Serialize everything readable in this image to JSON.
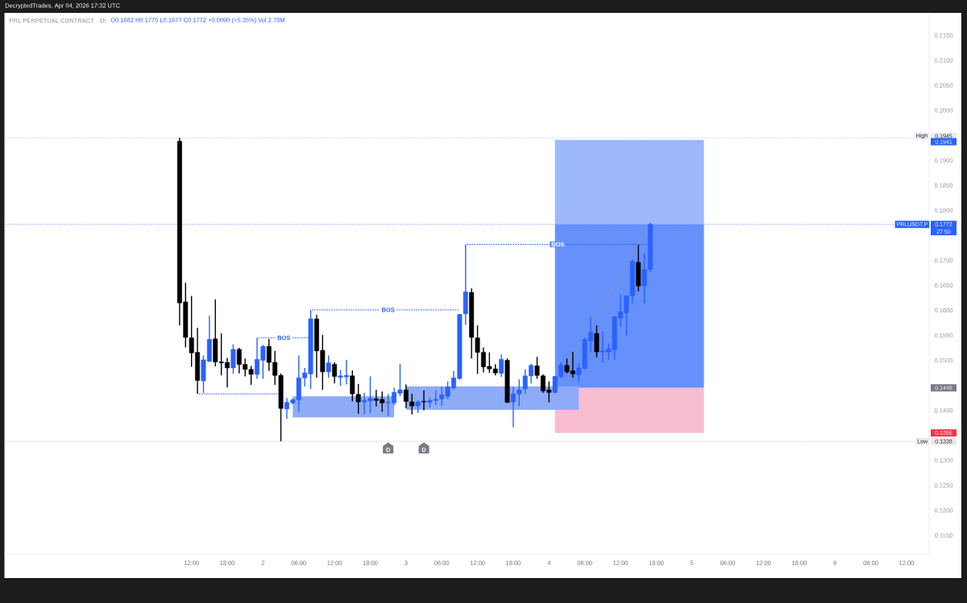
{
  "chart_data": {
    "type": "candlestick",
    "title": "PRL PERPETUAL CONTRACT · 1h",
    "subtitle": "O0.1682 H0.1775 L0.1677 C0.1772 +0.0090 (+5.35%) Vol 2.78M",
    "annotations": [
      "DecryptedTrades, Apr 04, 2026 17:32 UTC",
      "27:50",
      {
        "text": "BOS",
        "x": "2026-04-02T03:30",
        "y": 0.1545
      },
      {
        "text": "BOS",
        "x": "2026-04-02T21:00",
        "y": 0.1601
      },
      {
        "text": "BOS",
        "x": "2026-04-04T01:30",
        "y": 0.1732
      },
      {
        "text": "D",
        "x": "2026-04-02T21:00",
        "y": 0.1338
      },
      {
        "text": "D",
        "x": "2026-04-03T03:00",
        "y": 0.1338
      }
    ],
    "x": [
      "2026-04-01T10:00",
      "2026-04-01T11:00",
      "2026-04-01T12:00",
      "2026-04-01T13:00",
      "2026-04-01T14:00",
      "2026-04-01T15:00",
      "2026-04-01T16:00",
      "2026-04-01T17:00",
      "2026-04-01T18:00",
      "2026-04-01T19:00",
      "2026-04-01T20:00",
      "2026-04-01T21:00",
      "2026-04-01T22:00",
      "2026-04-01T23:00",
      "2026-04-02T00:00",
      "2026-04-02T01:00",
      "2026-04-02T02:00",
      "2026-04-02T03:00",
      "2026-04-02T04:00",
      "2026-04-02T05:00",
      "2026-04-02T06:00",
      "2026-04-02T07:00",
      "2026-04-02T08:00",
      "2026-04-02T09:00",
      "2026-04-02T10:00",
      "2026-04-02T11:00",
      "2026-04-02T12:00",
      "2026-04-02T13:00",
      "2026-04-02T14:00",
      "2026-04-02T15:00",
      "2026-04-02T16:00",
      "2026-04-02T17:00",
      "2026-04-02T18:00",
      "2026-04-02T19:00",
      "2026-04-02T20:00",
      "2026-04-02T21:00",
      "2026-04-02T22:00",
      "2026-04-02T23:00",
      "2026-04-03T00:00",
      "2026-04-03T01:00",
      "2026-04-03T02:00",
      "2026-04-03T03:00",
      "2026-04-03T04:00",
      "2026-04-03T05:00",
      "2026-04-03T06:00",
      "2026-04-03T07:00",
      "2026-04-03T08:00",
      "2026-04-03T09:00",
      "2026-04-03T10:00",
      "2026-04-03T11:00",
      "2026-04-03T12:00",
      "2026-04-03T13:00",
      "2026-04-03T14:00",
      "2026-04-03T15:00",
      "2026-04-03T16:00",
      "2026-04-03T17:00",
      "2026-04-03T18:00",
      "2026-04-03T19:00",
      "2026-04-03T20:00",
      "2026-04-03T21:00",
      "2026-04-03T22:00",
      "2026-04-03T23:00",
      "2026-04-04T00:00",
      "2026-04-04T01:00",
      "2026-04-04T02:00",
      "2026-04-04T03:00",
      "2026-04-04T04:00",
      "2026-04-04T05:00",
      "2026-04-04T06:00",
      "2026-04-04T07:00",
      "2026-04-04T08:00",
      "2026-04-04T09:00",
      "2026-04-04T10:00",
      "2026-04-04T11:00",
      "2026-04-04T12:00",
      "2026-04-04T13:00",
      "2026-04-04T14:00",
      "2026-04-04T15:00",
      "2026-04-04T16:00",
      "2026-04-04T17:00"
    ],
    "ohlc": [
      [
        0.1938,
        0.1945,
        0.157,
        0.1615
      ],
      [
        0.1617,
        0.1655,
        0.1526,
        0.1546
      ],
      [
        0.1545,
        0.1629,
        0.1487,
        0.1515
      ],
      [
        0.1516,
        0.1565,
        0.1433,
        0.146
      ],
      [
        0.1459,
        0.151,
        0.1435,
        0.1501
      ],
      [
        0.1498,
        0.1589,
        0.1497,
        0.1542
      ],
      [
        0.1543,
        0.1622,
        0.1488,
        0.1497
      ],
      [
        0.1497,
        0.1554,
        0.147,
        0.1495
      ],
      [
        0.1496,
        0.1505,
        0.1446,
        0.1485
      ],
      [
        0.1485,
        0.1532,
        0.1473,
        0.1522
      ],
      [
        0.1522,
        0.1525,
        0.1474,
        0.1492
      ],
      [
        0.1492,
        0.1504,
        0.1468,
        0.1482
      ],
      [
        0.1482,
        0.1489,
        0.1451,
        0.1472
      ],
      [
        0.1472,
        0.1545,
        0.1463,
        0.1502
      ],
      [
        0.15,
        0.1531,
        0.1463,
        0.1528
      ],
      [
        0.1528,
        0.1543,
        0.1479,
        0.1496
      ],
      [
        0.1496,
        0.1519,
        0.1451,
        0.147
      ],
      [
        0.147,
        0.1474,
        0.1338,
        0.1404
      ],
      [
        0.1403,
        0.1425,
        0.1383,
        0.1416
      ],
      [
        0.1415,
        0.1424,
        0.1412,
        0.1421
      ],
      [
        0.1421,
        0.151,
        0.1397,
        0.1465
      ],
      [
        0.1465,
        0.1485,
        0.1448,
        0.1475
      ],
      [
        0.1473,
        0.1601,
        0.1443,
        0.1583
      ],
      [
        0.1583,
        0.1591,
        0.1465,
        0.1519
      ],
      [
        0.152,
        0.1551,
        0.1441,
        0.1477
      ],
      [
        0.1477,
        0.151,
        0.1465,
        0.1495
      ],
      [
        0.1492,
        0.1496,
        0.1454,
        0.1468
      ],
      [
        0.1466,
        0.1481,
        0.1449,
        0.1469
      ],
      [
        0.1467,
        0.1501,
        0.1452,
        0.147
      ],
      [
        0.1469,
        0.148,
        0.1418,
        0.1433
      ],
      [
        0.1432,
        0.1453,
        0.1393,
        0.1417
      ],
      [
        0.1417,
        0.1435,
        0.1392,
        0.142
      ],
      [
        0.1419,
        0.1468,
        0.1395,
        0.1424
      ],
      [
        0.1423,
        0.1441,
        0.1408,
        0.142
      ],
      [
        0.1422,
        0.1438,
        0.1397,
        0.1415
      ],
      [
        0.1415,
        0.1433,
        0.1389,
        0.1416
      ],
      [
        0.1415,
        0.1445,
        0.141,
        0.1436
      ],
      [
        0.1434,
        0.1493,
        0.1428,
        0.1441
      ],
      [
        0.1441,
        0.1452,
        0.1405,
        0.1418
      ],
      [
        0.1417,
        0.1433,
        0.1392,
        0.1409
      ],
      [
        0.1409,
        0.142,
        0.1395,
        0.1417
      ],
      [
        0.1418,
        0.144,
        0.14,
        0.1417
      ],
      [
        0.1416,
        0.1426,
        0.1406,
        0.142
      ],
      [
        0.142,
        0.144,
        0.1411,
        0.1422
      ],
      [
        0.1423,
        0.1448,
        0.1409,
        0.1431
      ],
      [
        0.1428,
        0.1458,
        0.1422,
        0.1447
      ],
      [
        0.1445,
        0.1479,
        0.1441,
        0.1465
      ],
      [
        0.1464,
        0.1593,
        0.1461,
        0.1592
      ],
      [
        0.1593,
        0.1732,
        0.1571,
        0.1637
      ],
      [
        0.1636,
        0.1644,
        0.1504,
        0.1546
      ],
      [
        0.1545,
        0.157,
        0.1473,
        0.1516
      ],
      [
        0.1516,
        0.1526,
        0.1476,
        0.1487
      ],
      [
        0.1488,
        0.1516,
        0.1475,
        0.1483
      ],
      [
        0.1483,
        0.1492,
        0.147,
        0.1475
      ],
      [
        0.1474,
        0.1512,
        0.1467,
        0.1502
      ],
      [
        0.15,
        0.1504,
        0.1415,
        0.1416
      ],
      [
        0.1417,
        0.1447,
        0.1366,
        0.1433
      ],
      [
        0.1433,
        0.1462,
        0.1408,
        0.1441
      ],
      [
        0.1443,
        0.1482,
        0.1433,
        0.1469
      ],
      [
        0.1469,
        0.1493,
        0.1454,
        0.149
      ],
      [
        0.1489,
        0.1507,
        0.1463,
        0.147
      ],
      [
        0.1469,
        0.1472,
        0.1435,
        0.1439
      ],
      [
        0.1441,
        0.1458,
        0.1416,
        0.1436
      ],
      [
        0.1436,
        0.1468,
        0.1434,
        0.1468
      ],
      [
        0.1468,
        0.1496,
        0.1464,
        0.1491
      ],
      [
        0.149,
        0.1504,
        0.1474,
        0.1477
      ],
      [
        0.1479,
        0.1517,
        0.1465,
        0.1473
      ],
      [
        0.1471,
        0.1495,
        0.1456,
        0.1485
      ],
      [
        0.1484,
        0.1546,
        0.1482,
        0.1542
      ],
      [
        0.1539,
        0.1587,
        0.1516,
        0.1556
      ],
      [
        0.1554,
        0.157,
        0.1506,
        0.1517
      ],
      [
        0.1517,
        0.1558,
        0.1495,
        0.1519
      ],
      [
        0.1517,
        0.1534,
        0.1502,
        0.1523
      ],
      [
        0.1521,
        0.1588,
        0.1501,
        0.1587
      ],
      [
        0.1585,
        0.1632,
        0.1568,
        0.1597
      ],
      [
        0.1595,
        0.163,
        0.155,
        0.1629
      ],
      [
        0.1629,
        0.1702,
        0.1614,
        0.1698
      ],
      [
        0.1696,
        0.1731,
        0.1638,
        0.1649
      ],
      [
        0.1649,
        0.1714,
        0.1614,
        0.1682
      ],
      [
        0.1682,
        0.1775,
        0.1677,
        0.1772
      ]
    ],
    "colors": [
      "#000000",
      "#000000",
      "#000000",
      "#000000",
      "#2962ff",
      "#2962ff",
      "#000000",
      "#000000",
      "#000000",
      "#2962ff",
      "#000000",
      "#000000",
      "#000000",
      "#2962ff",
      "#2962ff",
      "#000000",
      "#000000",
      "#000000",
      "#2962ff",
      "#2962ff",
      "#2962ff",
      "#2962ff",
      "#2962ff",
      "#000000",
      "#000000",
      "#2962ff",
      "#000000",
      "#2962ff",
      "#2962ff",
      "#000000",
      "#000000",
      "#2962ff",
      "#2962ff",
      "#000000",
      "#000000",
      "#2962ff",
      "#2962ff",
      "#2962ff",
      "#000000",
      "#000000",
      "#2962ff",
      "#000000",
      "#2962ff",
      "#2962ff",
      "#2962ff",
      "#2962ff",
      "#2962ff",
      "#2962ff",
      "#2962ff",
      "#000000",
      "#000000",
      "#000000",
      "#000000",
      "#000000",
      "#2962ff",
      "#000000",
      "#2962ff",
      "#2962ff",
      "#2962ff",
      "#2962ff",
      "#000000",
      "#000000",
      "#000000",
      "#2962ff",
      "#2962ff",
      "#000000",
      "#000000",
      "#2962ff",
      "#2962ff",
      "#2962ff",
      "#000000",
      "#2962ff",
      "#2962ff",
      "#2962ff",
      "#2962ff",
      "#2962ff",
      "#2962ff",
      "#000000",
      "#2962ff",
      "#2962ff"
    ],
    "xlim": [
      "2026-03-31T04:36",
      "2026-04-06T15:48"
    ],
    "ylim": [
      0.1113,
      0.2195
    ],
    "y2lim": [
      0.1113,
      0.2195
    ],
    "xticks": [
      {
        "value": "2026-04-01T12:00",
        "label": "12:00"
      },
      {
        "value": "2026-04-01T18:00",
        "label": "18:00"
      },
      {
        "value": "2026-04-02T00:00",
        "label": "2"
      },
      {
        "value": "2026-04-02T06:00",
        "label": "06:00"
      },
      {
        "value": "2026-04-02T12:00",
        "label": "12:00"
      },
      {
        "value": "2026-04-02T18:00",
        "label": "18:00"
      },
      {
        "value": "2026-04-03T00:00",
        "label": "3"
      },
      {
        "value": "2026-04-03T06:00",
        "label": "06:00"
      },
      {
        "value": "2026-04-03T12:00",
        "label": "12:00"
      },
      {
        "value": "2026-04-03T18:00",
        "label": "18:00"
      },
      {
        "value": "2026-04-04T00:00",
        "label": "4"
      },
      {
        "value": "2026-04-04T06:00",
        "label": "06:00"
      },
      {
        "value": "2026-04-04T12:00",
        "label": "12:00"
      },
      {
        "value": "2026-04-04T18:00",
        "label": "18:00"
      },
      {
        "value": "2026-04-05T00:00",
        "label": "5"
      },
      {
        "value": "2026-04-05T06:00",
        "label": "06:00"
      },
      {
        "value": "2026-04-05T12:00",
        "label": "12:00"
      },
      {
        "value": "2026-04-05T18:00",
        "label": "18:00"
      },
      {
        "value": "2026-04-06T00:00",
        "label": "6"
      },
      {
        "value": "2026-04-06T06:00",
        "label": "06:00"
      },
      {
        "value": "2026-04-06T12:00",
        "label": "12:00"
      }
    ],
    "yticks": [
      {
        "value": 0.115,
        "label": "0.1150"
      },
      {
        "value": 0.12,
        "label": "0.1200"
      },
      {
        "value": 0.125,
        "label": "0.1250"
      },
      {
        "value": 0.13,
        "label": "0.1300"
      },
      {
        "value": 0.14,
        "label": "0.1400"
      },
      {
        "value": 0.15,
        "label": "0.1500"
      },
      {
        "value": 0.155,
        "label": "0.1550"
      },
      {
        "value": 0.16,
        "label": "0.1600"
      },
      {
        "value": 0.165,
        "label": "0.1650"
      },
      {
        "value": 0.17,
        "label": "0.1700"
      },
      {
        "value": 0.18,
        "label": "0.1800"
      },
      {
        "value": 0.185,
        "label": "0.1850"
      },
      {
        "value": 0.19,
        "label": "0.1900"
      },
      {
        "value": 0.2,
        "label": "0.2000"
      },
      {
        "value": 0.205,
        "label": "0.2050"
      },
      {
        "value": 0.21,
        "label": "0.2100"
      },
      {
        "value": 0.215,
        "label": "0.2150"
      }
    ],
    "y2ticks": [
      0.1945,
      0.1941,
      0.1772,
      0.1445,
      0.1355,
      0.1338
    ],
    "ref_lines": [
      {
        "axis": "y",
        "value": 0.1945,
        "label": "High",
        "color": "#8fa3d9",
        "line_style": "dotted"
      },
      {
        "axis": "y",
        "value": 0.1772,
        "label": "PRLUSDT.P",
        "color": "#2962ff",
        "line_style": "dotted"
      },
      {
        "axis": "y",
        "value": 0.1338,
        "label": "Low",
        "color": "#9598a1",
        "line_style": "dotted"
      }
    ],
    "series": [
      {
        "type": "area",
        "x": [
          "2026-04-04T01:00",
          "2026-04-05T02:00"
        ],
        "values": [
          null,
          null
        ],
        "lower": [
          0.1772,
          0.1772
        ],
        "upper": [
          0.1941,
          0.1941
        ],
        "color": "#9db8fb"
      },
      {
        "type": "area",
        "x": [
          "2026-04-04T01:00",
          "2026-04-05T02:00"
        ],
        "values": [
          null,
          null
        ],
        "lower": [
          0.1445,
          0.1445
        ],
        "upper": [
          0.1772,
          0.1772
        ],
        "color": "#6690fa"
      },
      {
        "type": "area",
        "x": [
          "2026-04-04T01:00",
          "2026-04-05T02:00"
        ],
        "values": [
          null,
          null
        ],
        "lower": [
          0.1355,
          0.1355
        ],
        "upper": [
          0.1445,
          0.1445
        ],
        "color": "#f8bcd1"
      },
      {
        "type": "area",
        "x": [
          "2026-04-02T05:00",
          "2026-04-02T22:00"
        ],
        "values": [
          null,
          null
        ],
        "lower": [
          0.1386,
          0.1386
        ],
        "upper": [
          0.1428,
          0.1428
        ],
        "color": "#8eabf8"
      },
      {
        "type": "area",
        "x": [
          "2026-04-03T00:00",
          "2026-04-04T05:00"
        ],
        "values": [
          null,
          null
        ],
        "lower": [
          0.1401,
          0.1401
        ],
        "upper": [
          0.1448,
          0.1448
        ],
        "color": "#8eabf8"
      },
      {
        "type": "line",
        "x": [
          "2026-04-01T13:00",
          "2026-04-02T02:30"
        ],
        "values": [
          0.1433,
          0.1433
        ],
        "color": "#2962ff",
        "line_style": "dotted"
      },
      {
        "type": "line",
        "x": [
          "2026-04-01T23:00",
          "2026-04-02T07:30"
        ],
        "values": [
          0.1545,
          0.1545
        ],
        "color": "#2962ff",
        "line_style": "dotted"
      },
      {
        "type": "line",
        "x": [
          "2026-04-02T08:00",
          "2026-04-03T09:00"
        ],
        "values": [
          0.1601,
          0.1601
        ],
        "color": "#2962ff",
        "line_style": "dotted"
      },
      {
        "type": "line",
        "x": [
          "2026-04-03T10:00",
          "2026-04-04T16:30"
        ],
        "values": [
          0.1732,
          0.1732
        ],
        "color": "#2962ff",
        "line_style": "dotted"
      },
      {
        "type": "line",
        "x": [
          "2026-04-04T01:00",
          "2026-04-04T16:30"
        ],
        "values": [
          0.1445,
          0.1765
        ],
        "color": "#9598a1",
        "line_style": "dashed"
      }
    ]
  }
}
